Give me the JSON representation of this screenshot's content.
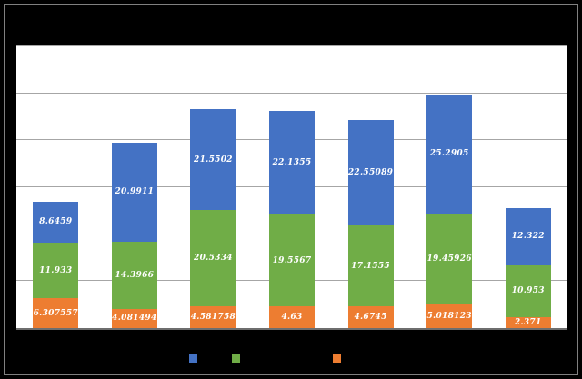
{
  "chart_data": {
    "type": "bar",
    "stacked": true,
    "orientation": "vertical",
    "title": "",
    "categories": [
      "",
      "",
      "",
      "",
      "",
      "",
      ""
    ],
    "series": [
      {
        "stack_position": "bottom",
        "color": "#ED7D31",
        "values": [
          6.307557,
          4.081494,
          4.581758,
          4.63,
          4.6745,
          5.018123,
          2.371
        ],
        "labels": [
          "6.307557",
          "4.081494",
          "4.581758",
          "4.63",
          "4.6745",
          "5.018123",
          "2.371"
        ]
      },
      {
        "stack_position": "middle",
        "color": "#70AD47",
        "values": [
          11.933,
          14.3966,
          20.5334,
          19.5567,
          17.1555,
          19.45926,
          10.953
        ],
        "labels": [
          "11.933",
          "14.3966",
          "20.5334",
          "19.5567",
          "17.1555",
          "19.45926",
          "10.953"
        ]
      },
      {
        "stack_position": "top",
        "color": "#4472C4",
        "values": [
          8.6459,
          20.9911,
          21.5502,
          22.1355,
          22.55089,
          25.2905,
          12.322
        ],
        "labels": [
          "8.6459",
          "20.9911",
          "21.5502",
          "22.1355",
          "22.55089",
          "25.2905",
          "12.322"
        ]
      }
    ],
    "data_label_color": "#FFFFFF",
    "ylim": [
      0,
      60
    ],
    "gridline_step": 10,
    "grid": true,
    "legend_position": "bottom",
    "legend_swatch_colors": [
      "#4472C4",
      "#70AD47",
      "#ED7D31"
    ]
  },
  "colors": {
    "background": "#000000",
    "plot_background": "#FFFFFF",
    "gridline": "#A6A6A6",
    "chart_border": "#808080",
    "axis_line": "#6E6E6E"
  }
}
